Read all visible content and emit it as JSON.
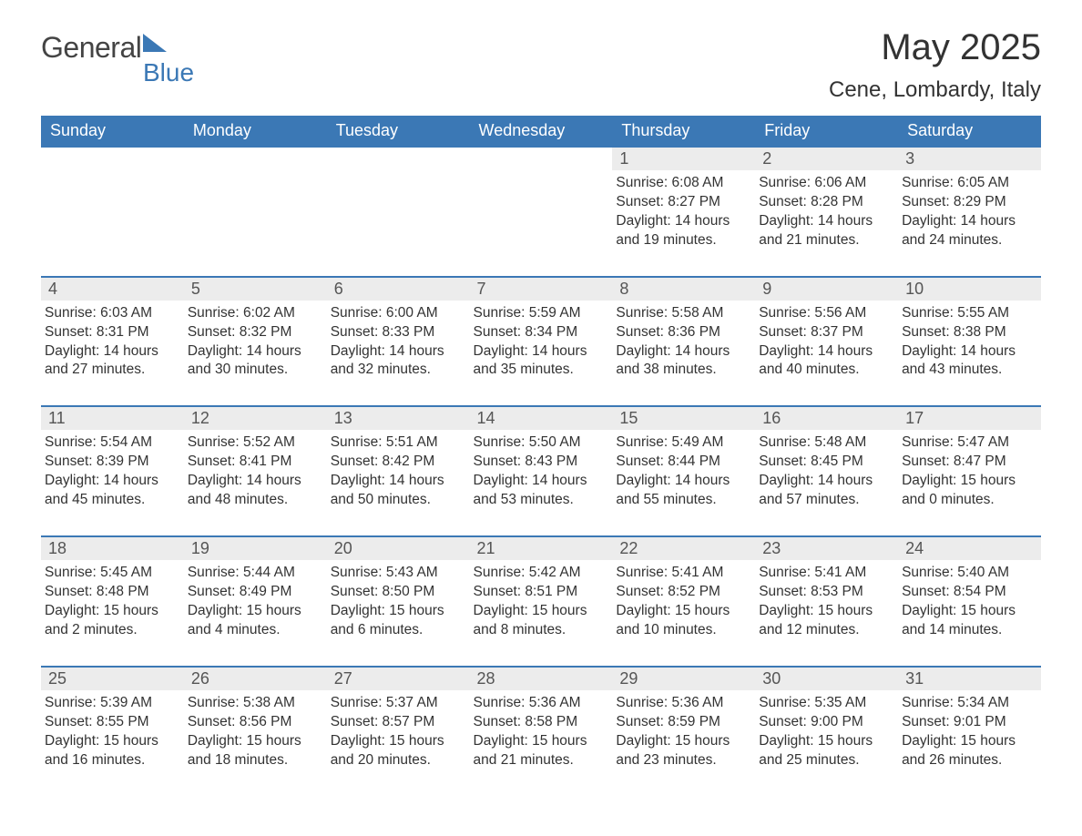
{
  "logo": {
    "word1": "General",
    "word2": "Blue"
  },
  "header": {
    "month_title": "May 2025",
    "location": "Cene, Lombardy, Italy"
  },
  "colors": {
    "header_bg": "#3b78b5",
    "daynum_bg": "#ececec",
    "text": "#333333",
    "logo_accent": "#3b78b5"
  },
  "days_of_week": [
    "Sunday",
    "Monday",
    "Tuesday",
    "Wednesday",
    "Thursday",
    "Friday",
    "Saturday"
  ],
  "weeks": [
    [
      {
        "blank": true
      },
      {
        "blank": true
      },
      {
        "blank": true
      },
      {
        "blank": true
      },
      {
        "n": "1",
        "sunrise": "6:08 AM",
        "sunset": "8:27 PM",
        "daylight": "14 hours and 19 minutes."
      },
      {
        "n": "2",
        "sunrise": "6:06 AM",
        "sunset": "8:28 PM",
        "daylight": "14 hours and 21 minutes."
      },
      {
        "n": "3",
        "sunrise": "6:05 AM",
        "sunset": "8:29 PM",
        "daylight": "14 hours and 24 minutes."
      }
    ],
    [
      {
        "n": "4",
        "sunrise": "6:03 AM",
        "sunset": "8:31 PM",
        "daylight": "14 hours and 27 minutes."
      },
      {
        "n": "5",
        "sunrise": "6:02 AM",
        "sunset": "8:32 PM",
        "daylight": "14 hours and 30 minutes."
      },
      {
        "n": "6",
        "sunrise": "6:00 AM",
        "sunset": "8:33 PM",
        "daylight": "14 hours and 32 minutes."
      },
      {
        "n": "7",
        "sunrise": "5:59 AM",
        "sunset": "8:34 PM",
        "daylight": "14 hours and 35 minutes."
      },
      {
        "n": "8",
        "sunrise": "5:58 AM",
        "sunset": "8:36 PM",
        "daylight": "14 hours and 38 minutes."
      },
      {
        "n": "9",
        "sunrise": "5:56 AM",
        "sunset": "8:37 PM",
        "daylight": "14 hours and 40 minutes."
      },
      {
        "n": "10",
        "sunrise": "5:55 AM",
        "sunset": "8:38 PM",
        "daylight": "14 hours and 43 minutes."
      }
    ],
    [
      {
        "n": "11",
        "sunrise": "5:54 AM",
        "sunset": "8:39 PM",
        "daylight": "14 hours and 45 minutes."
      },
      {
        "n": "12",
        "sunrise": "5:52 AM",
        "sunset": "8:41 PM",
        "daylight": "14 hours and 48 minutes."
      },
      {
        "n": "13",
        "sunrise": "5:51 AM",
        "sunset": "8:42 PM",
        "daylight": "14 hours and 50 minutes."
      },
      {
        "n": "14",
        "sunrise": "5:50 AM",
        "sunset": "8:43 PM",
        "daylight": "14 hours and 53 minutes."
      },
      {
        "n": "15",
        "sunrise": "5:49 AM",
        "sunset": "8:44 PM",
        "daylight": "14 hours and 55 minutes."
      },
      {
        "n": "16",
        "sunrise": "5:48 AM",
        "sunset": "8:45 PM",
        "daylight": "14 hours and 57 minutes."
      },
      {
        "n": "17",
        "sunrise": "5:47 AM",
        "sunset": "8:47 PM",
        "daylight": "15 hours and 0 minutes."
      }
    ],
    [
      {
        "n": "18",
        "sunrise": "5:45 AM",
        "sunset": "8:48 PM",
        "daylight": "15 hours and 2 minutes."
      },
      {
        "n": "19",
        "sunrise": "5:44 AM",
        "sunset": "8:49 PM",
        "daylight": "15 hours and 4 minutes."
      },
      {
        "n": "20",
        "sunrise": "5:43 AM",
        "sunset": "8:50 PM",
        "daylight": "15 hours and 6 minutes."
      },
      {
        "n": "21",
        "sunrise": "5:42 AM",
        "sunset": "8:51 PM",
        "daylight": "15 hours and 8 minutes."
      },
      {
        "n": "22",
        "sunrise": "5:41 AM",
        "sunset": "8:52 PM",
        "daylight": "15 hours and 10 minutes."
      },
      {
        "n": "23",
        "sunrise": "5:41 AM",
        "sunset": "8:53 PM",
        "daylight": "15 hours and 12 minutes."
      },
      {
        "n": "24",
        "sunrise": "5:40 AM",
        "sunset": "8:54 PM",
        "daylight": "15 hours and 14 minutes."
      }
    ],
    [
      {
        "n": "25",
        "sunrise": "5:39 AM",
        "sunset": "8:55 PM",
        "daylight": "15 hours and 16 minutes."
      },
      {
        "n": "26",
        "sunrise": "5:38 AM",
        "sunset": "8:56 PM",
        "daylight": "15 hours and 18 minutes."
      },
      {
        "n": "27",
        "sunrise": "5:37 AM",
        "sunset": "8:57 PM",
        "daylight": "15 hours and 20 minutes."
      },
      {
        "n": "28",
        "sunrise": "5:36 AM",
        "sunset": "8:58 PM",
        "daylight": "15 hours and 21 minutes."
      },
      {
        "n": "29",
        "sunrise": "5:36 AM",
        "sunset": "8:59 PM",
        "daylight": "15 hours and 23 minutes."
      },
      {
        "n": "30",
        "sunrise": "5:35 AM",
        "sunset": "9:00 PM",
        "daylight": "15 hours and 25 minutes."
      },
      {
        "n": "31",
        "sunrise": "5:34 AM",
        "sunset": "9:01 PM",
        "daylight": "15 hours and 26 minutes."
      }
    ]
  ],
  "labels": {
    "sunrise_prefix": "Sunrise: ",
    "sunset_prefix": "Sunset: ",
    "daylight_prefix": "Daylight: "
  }
}
